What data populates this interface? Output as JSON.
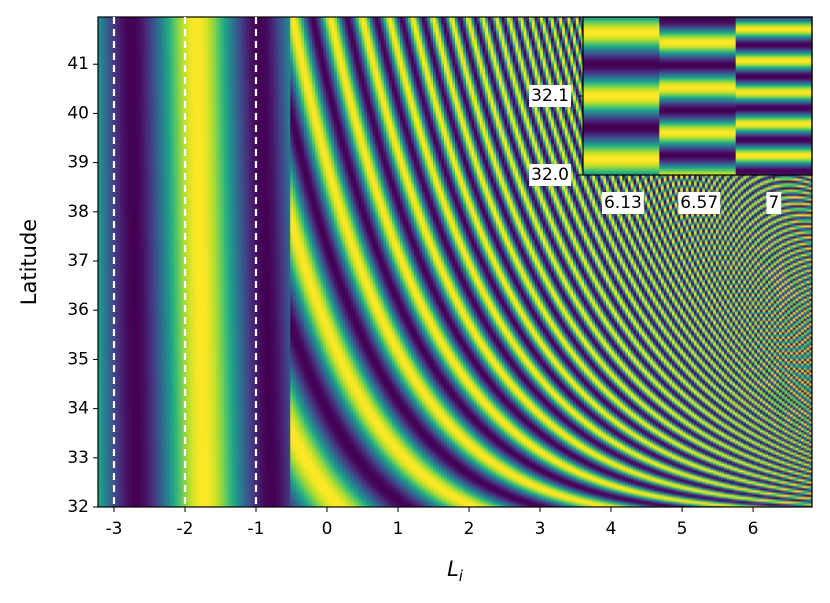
{
  "chart_data": {
    "type": "heatmap",
    "xlabel": {
      "base": "L",
      "sub": "i"
    },
    "ylabel": "Latitude",
    "xlim": [
      -3.225,
      6.83
    ],
    "ylim": [
      32,
      41.96
    ],
    "xticks": [
      -3,
      -2,
      -1,
      0,
      1,
      2,
      3,
      4,
      5,
      6
    ],
    "yticks": [
      32,
      33,
      34,
      35,
      36,
      37,
      38,
      39,
      40,
      41
    ],
    "vlines": [
      -3,
      -2,
      -1
    ],
    "vline_color": "#ffffff",
    "colormap": "viridis",
    "inset": {
      "xlim": [
        5.9,
        7.22
      ],
      "ylim": [
        32,
        32.2
      ],
      "xticks": [
        6.13,
        6.57,
        7
      ],
      "yticks": [
        {
          "value": 32,
          "label": "32.0"
        },
        32.1
      ]
    }
  }
}
